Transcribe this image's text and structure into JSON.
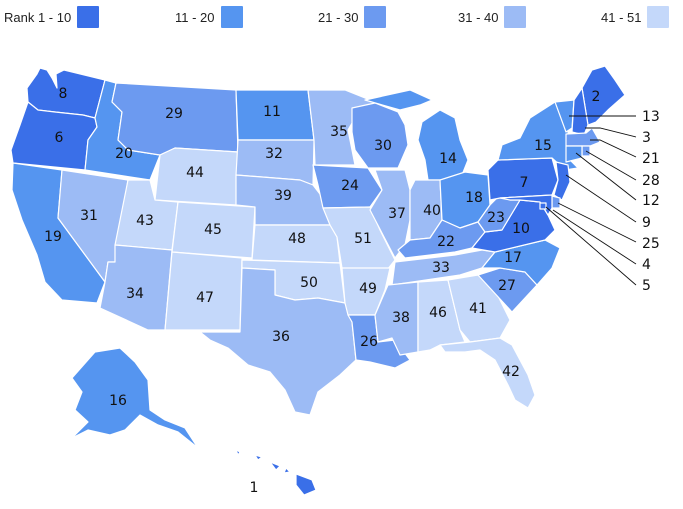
{
  "legend": [
    {
      "label": "Rank 1 - 10",
      "color": "#3a6fe8"
    },
    {
      "label": "11 - 20",
      "color": "#5595f0"
    },
    {
      "label": "21 - 30",
      "color": "#6c9af0"
    },
    {
      "label": "31 - 40",
      "color": "#9cbbf5"
    },
    {
      "label": "41 - 51",
      "color": "#c4d8fa"
    }
  ],
  "tiers": {
    "t1": "#3a6fe8",
    "t2": "#5595f0",
    "t3": "#6c9af0",
    "t4": "#9cbbf5",
    "t5": "#c4d8fa"
  },
  "states": {
    "WA": {
      "rank": "8",
      "tier": "t1"
    },
    "OR": {
      "rank": "6",
      "tier": "t1"
    },
    "CA": {
      "rank": "19",
      "tier": "t2"
    },
    "ID": {
      "rank": "20",
      "tier": "t2"
    },
    "NV": {
      "rank": "31",
      "tier": "t4"
    },
    "MT": {
      "rank": "29",
      "tier": "t3"
    },
    "WY": {
      "rank": "44",
      "tier": "t5"
    },
    "UT": {
      "rank": "43",
      "tier": "t5"
    },
    "AZ": {
      "rank": "34",
      "tier": "t4"
    },
    "CO": {
      "rank": "45",
      "tier": "t5"
    },
    "NM": {
      "rank": "47",
      "tier": "t5"
    },
    "ND": {
      "rank": "11",
      "tier": "t2"
    },
    "SD": {
      "rank": "32",
      "tier": "t4"
    },
    "NE": {
      "rank": "39",
      "tier": "t4"
    },
    "KS": {
      "rank": "48",
      "tier": "t5"
    },
    "OK": {
      "rank": "50",
      "tier": "t5"
    },
    "TX": {
      "rank": "36",
      "tier": "t4"
    },
    "MN": {
      "rank": "35",
      "tier": "t4"
    },
    "IA": {
      "rank": "24",
      "tier": "t3"
    },
    "MO": {
      "rank": "51",
      "tier": "t5"
    },
    "AR": {
      "rank": "49",
      "tier": "t5"
    },
    "LA": {
      "rank": "26",
      "tier": "t3"
    },
    "WI": {
      "rank": "30",
      "tier": "t3"
    },
    "IL": {
      "rank": "37",
      "tier": "t4"
    },
    "MI": {
      "rank": "14",
      "tier": "t2"
    },
    "IN": {
      "rank": "40",
      "tier": "t4"
    },
    "OH": {
      "rank": "18",
      "tier": "t2"
    },
    "KY": {
      "rank": "22",
      "tier": "t3"
    },
    "TN": {
      "rank": "33",
      "tier": "t4"
    },
    "MS": {
      "rank": "38",
      "tier": "t4"
    },
    "AL": {
      "rank": "46",
      "tier": "t5"
    },
    "GA": {
      "rank": "41",
      "tier": "t5"
    },
    "FL": {
      "rank": "42",
      "tier": "t5"
    },
    "SC": {
      "rank": "27",
      "tier": "t3"
    },
    "NC": {
      "rank": "17",
      "tier": "t2"
    },
    "VA": {
      "rank": "10",
      "tier": "t1"
    },
    "WV": {
      "rank": "23",
      "tier": "t3"
    },
    "PA": {
      "rank": "7",
      "tier": "t1"
    },
    "NY": {
      "rank": "15",
      "tier": "t2"
    },
    "ME": {
      "rank": "2",
      "tier": "t1"
    },
    "VT": {
      "rank": "13",
      "tier": "t2"
    },
    "NH": {
      "rank": "3",
      "tier": "t1"
    },
    "MA": {
      "rank": "21",
      "tier": "t3"
    },
    "RI": {
      "rank": "28",
      "tier": "t3"
    },
    "CT": {
      "rank": "12",
      "tier": "t2"
    },
    "NJ": {
      "rank": "9",
      "tier": "t1"
    },
    "DE": {
      "rank": "25",
      "tier": "t3"
    },
    "MD": {
      "rank": "4",
      "tier": "t1"
    },
    "DC": {
      "rank": "5",
      "tier": "t1"
    },
    "AK": {
      "rank": "16",
      "tier": "t2"
    },
    "HI": {
      "rank": "1",
      "tier": "t1"
    }
  }
}
